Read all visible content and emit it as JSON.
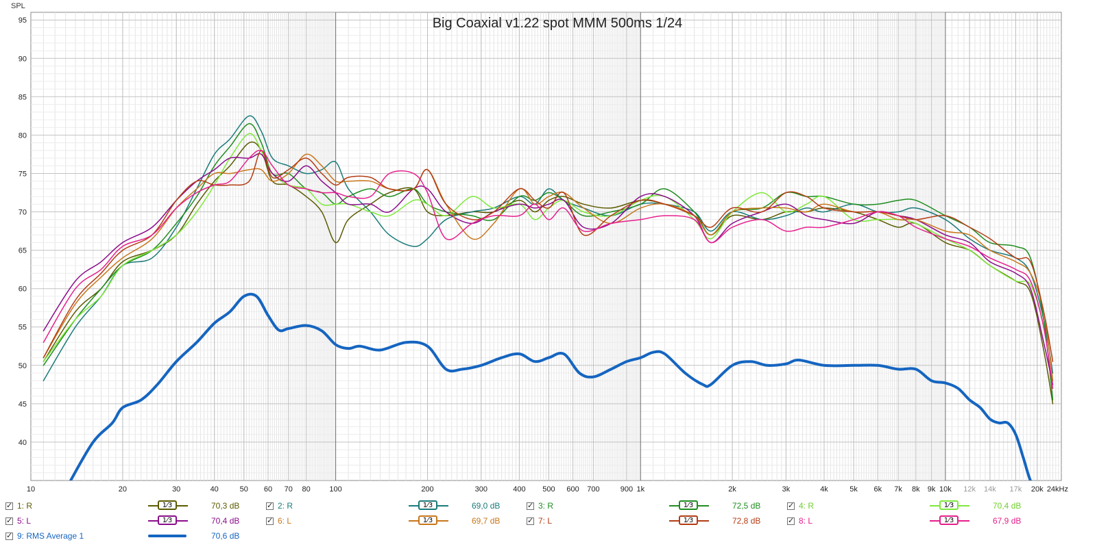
{
  "chart_data": {
    "type": "line",
    "title": "Big Coaxial v1.22 spot MMM 500ms 1/24",
    "ylabel": "SPL",
    "xscale": "log",
    "xlim": [
      10,
      24000
    ],
    "ylim": [
      35,
      96
    ],
    "grid": true,
    "x_ticks": [
      {
        "f": 10,
        "label": "10"
      },
      {
        "f": 20,
        "label": "20"
      },
      {
        "f": 30,
        "label": "30"
      },
      {
        "f": 40,
        "label": "40"
      },
      {
        "f": 50,
        "label": "50"
      },
      {
        "f": 60,
        "label": "60"
      },
      {
        "f": 70,
        "label": "70"
      },
      {
        "f": 80,
        "label": "80"
      },
      {
        "f": 100,
        "label": "100"
      },
      {
        "f": 200,
        "label": "200"
      },
      {
        "f": 300,
        "label": "300"
      },
      {
        "f": 400,
        "label": "400"
      },
      {
        "f": 500,
        "label": "500"
      },
      {
        "f": 600,
        "label": "600"
      },
      {
        "f": 700,
        "label": "700"
      },
      {
        "f": 900,
        "label": "900"
      },
      {
        "f": 1000,
        "label": "1k"
      },
      {
        "f": 2000,
        "label": "2k"
      },
      {
        "f": 3000,
        "label": "3k"
      },
      {
        "f": 4000,
        "label": "4k"
      },
      {
        "f": 5000,
        "label": "5k"
      },
      {
        "f": 6000,
        "label": "6k"
      },
      {
        "f": 7000,
        "label": "7k"
      },
      {
        "f": 8000,
        "label": "8k"
      },
      {
        "f": 9000,
        "label": "9k"
      },
      {
        "f": 10000,
        "label": "10k"
      },
      {
        "f": 12000,
        "label": "12k"
      },
      {
        "f": 14000,
        "label": "14k"
      },
      {
        "f": 17000,
        "label": "17k"
      },
      {
        "f": 20000,
        "label": "20k"
      },
      {
        "f": 24000,
        "label": "24kHz"
      }
    ],
    "y_ticks": [
      40,
      45,
      50,
      55,
      60,
      65,
      70,
      75,
      80,
      85,
      90,
      95
    ],
    "series": [
      {
        "name": "1: R",
        "color": "#5a5a00",
        "width": 1.5,
        "x": [
          11,
          14,
          17,
          20,
          25,
          30,
          35,
          40,
          45,
          52,
          57,
          62,
          70,
          80,
          90,
          100,
          110,
          130,
          150,
          180,
          200,
          230,
          280,
          330,
          400,
          450,
          500,
          560,
          650,
          800,
          1000,
          1200,
          1500,
          1700,
          2000,
          2500,
          3000,
          3500,
          4000,
          5000,
          6000,
          7000,
          8000,
          10000,
          12000,
          14000,
          17000,
          19000,
          21000,
          22500
        ],
        "y": [
          50.5,
          57,
          60,
          63.5,
          65,
          67,
          71,
          74,
          76,
          79,
          78,
          74,
          73.5,
          72,
          70,
          66,
          69,
          71,
          72.5,
          73,
          70,
          69.5,
          70,
          70,
          71.5,
          70,
          71.5,
          72,
          71,
          70.5,
          71.5,
          71,
          69.5,
          67,
          69.5,
          69,
          70,
          70,
          70.5,
          70,
          69,
          68,
          68.5,
          66,
          65,
          63,
          61,
          59.5,
          52,
          45
        ]
      },
      {
        "name": "2: R",
        "color": "#1a7a7a",
        "width": 1.5,
        "x": [
          11,
          14,
          17,
          20,
          25,
          30,
          35,
          40,
          45,
          52,
          57,
          62,
          70,
          80,
          90,
          100,
          110,
          130,
          150,
          180,
          200,
          230,
          280,
          330,
          400,
          450,
          500,
          560,
          650,
          800,
          1000,
          1200,
          1500,
          1700,
          2000,
          2500,
          3000,
          3500,
          4000,
          5000,
          6000,
          7000,
          8000,
          10000,
          12000,
          14000,
          17000,
          19000,
          21000,
          22500
        ],
        "y": [
          48,
          55,
          59,
          63,
          64,
          68,
          73,
          77.5,
          79.5,
          82.5,
          80.5,
          77,
          76,
          75,
          75.5,
          76.5,
          73,
          70,
          67,
          65.5,
          66.5,
          69,
          70,
          70.5,
          72,
          71,
          73,
          71.5,
          70.5,
          69.5,
          71,
          71,
          70,
          67.5,
          70,
          69,
          69.5,
          70.5,
          70,
          71,
          70,
          70,
          70.5,
          69,
          66.5,
          65,
          64,
          62,
          56,
          49
        ]
      },
      {
        "name": "3: R",
        "color": "#1e8c1e",
        "width": 1.5,
        "x": [
          11,
          14,
          17,
          20,
          25,
          30,
          35,
          40,
          45,
          52,
          57,
          62,
          70,
          80,
          90,
          100,
          110,
          130,
          150,
          180,
          200,
          230,
          280,
          330,
          400,
          450,
          500,
          560,
          650,
          800,
          1000,
          1200,
          1500,
          1700,
          2000,
          2500,
          3000,
          3500,
          4000,
          5000,
          6000,
          7000,
          8000,
          10000,
          12000,
          14000,
          17000,
          19000,
          21000,
          22500
        ],
        "y": [
          50,
          56,
          60,
          63,
          65,
          68.5,
          72,
          76,
          78.5,
          81.5,
          79,
          75,
          75,
          73,
          72.5,
          71,
          72,
          73,
          72,
          73,
          71,
          70,
          69.5,
          69,
          72,
          71.5,
          72.5,
          71.5,
          69.5,
          70,
          71,
          73,
          70,
          67,
          70,
          70.5,
          72.5,
          72,
          72,
          71,
          71,
          71.5,
          71.5,
          69.5,
          68,
          66,
          65.5,
          64,
          56,
          45.5
        ]
      },
      {
        "name": "4: R",
        "color": "#7ee83a",
        "width": 1.5,
        "x": [
          11,
          14,
          17,
          20,
          25,
          30,
          35,
          40,
          45,
          52,
          57,
          62,
          70,
          80,
          90,
          100,
          110,
          130,
          150,
          180,
          200,
          230,
          280,
          330,
          400,
          450,
          500,
          560,
          650,
          800,
          1000,
          1200,
          1500,
          1700,
          2000,
          2500,
          3000,
          3500,
          4000,
          5000,
          6000,
          7000,
          8000,
          10000,
          12000,
          14000,
          17000,
          19000,
          21000,
          22500
        ],
        "y": [
          50.5,
          56,
          59,
          63,
          65,
          67,
          70,
          73.5,
          77,
          80.2,
          78,
          75,
          73.5,
          73,
          71,
          71,
          71,
          70,
          69.5,
          71.5,
          71,
          69.5,
          72,
          70.5,
          71,
          69,
          70.5,
          71.5,
          70,
          69.5,
          71.5,
          72,
          69,
          66.5,
          70,
          72.5,
          70,
          71,
          72,
          69,
          69,
          69,
          68.5,
          66.5,
          65,
          63,
          61,
          60.5,
          55,
          47
        ]
      },
      {
        "name": "5: L",
        "color": "#8b0c8b",
        "width": 1.5,
        "x": [
          11,
          14,
          17,
          20,
          25,
          30,
          35,
          40,
          45,
          52,
          57,
          62,
          70,
          80,
          90,
          100,
          110,
          130,
          150,
          180,
          200,
          230,
          280,
          330,
          400,
          450,
          500,
          560,
          650,
          800,
          1000,
          1200,
          1500,
          1700,
          2000,
          2500,
          3000,
          3500,
          4000,
          5000,
          6000,
          7000,
          8000,
          10000,
          12000,
          14000,
          17000,
          19000,
          21000,
          22500
        ],
        "y": [
          54.5,
          61,
          63.5,
          66,
          68,
          71.5,
          74,
          75.5,
          77,
          77,
          77.5,
          75,
          74,
          76,
          74,
          72.5,
          71,
          71,
          70,
          73,
          73,
          70,
          68.5,
          70,
          71,
          70.5,
          71,
          71.5,
          68,
          68.5,
          72,
          72,
          69.5,
          66,
          68.5,
          70,
          71,
          69.5,
          69,
          68.5,
          70,
          69.5,
          69,
          67,
          66,
          63.5,
          62,
          60,
          53,
          47.5
        ]
      },
      {
        "name": "6: L",
        "color": "#c8761a",
        "width": 1.5,
        "x": [
          11,
          14,
          17,
          20,
          25,
          30,
          35,
          40,
          45,
          52,
          57,
          62,
          70,
          80,
          90,
          100,
          110,
          130,
          150,
          180,
          200,
          230,
          280,
          330,
          400,
          450,
          500,
          560,
          650,
          800,
          1000,
          1200,
          1500,
          1700,
          2000,
          2500,
          3000,
          3500,
          4000,
          5000,
          6000,
          7000,
          8000,
          10000,
          12000,
          14000,
          17000,
          19000,
          21000,
          22500
        ],
        "y": [
          51,
          58,
          61.5,
          64,
          66.5,
          70.5,
          73,
          75,
          75,
          75.5,
          75.5,
          74,
          75,
          77.5,
          76,
          74,
          74,
          74,
          73,
          73,
          75.5,
          71,
          66.5,
          68.5,
          73,
          71,
          72,
          72.5,
          70.5,
          68.5,
          70.5,
          71,
          69.5,
          67,
          70,
          70.5,
          70.5,
          70,
          71,
          70,
          70,
          69,
          69,
          67.5,
          67,
          65,
          63.5,
          62,
          57,
          48
        ]
      },
      {
        "name": "7: L",
        "color": "#b33c14",
        "width": 1.5,
        "x": [
          11,
          14,
          17,
          20,
          25,
          30,
          35,
          40,
          45,
          52,
          57,
          62,
          70,
          80,
          90,
          100,
          110,
          130,
          150,
          180,
          200,
          230,
          280,
          330,
          400,
          450,
          500,
          560,
          650,
          800,
          1000,
          1200,
          1500,
          1700,
          2000,
          2500,
          3000,
          3500,
          4000,
          5000,
          6000,
          7000,
          8000,
          10000,
          12000,
          14000,
          17000,
          19000,
          21000,
          22500
        ],
        "y": [
          51,
          58.5,
          62,
          65,
          67,
          71.5,
          74,
          73.5,
          73.5,
          74,
          78,
          74.5,
          75.5,
          77,
          75,
          73.5,
          74.5,
          74.5,
          73,
          73,
          75.5,
          71,
          69,
          70,
          73,
          71.5,
          70.5,
          72.5,
          67,
          69.5,
          71.5,
          71,
          69.5,
          68,
          70.5,
          70,
          72.5,
          72,
          70.5,
          70,
          70,
          69.5,
          69,
          69.5,
          68,
          66.5,
          64,
          63.5,
          57,
          50.5
        ]
      },
      {
        "name": "8: L",
        "color": "#e61e8c",
        "width": 1.5,
        "x": [
          11,
          14,
          17,
          20,
          25,
          30,
          35,
          40,
          45,
          52,
          57,
          62,
          70,
          80,
          90,
          100,
          110,
          130,
          150,
          180,
          200,
          230,
          280,
          330,
          400,
          450,
          500,
          560,
          650,
          800,
          1000,
          1200,
          1500,
          1700,
          2000,
          2500,
          3000,
          3500,
          4000,
          5000,
          6000,
          7000,
          8000,
          10000,
          12000,
          14000,
          17000,
          19000,
          21000,
          22500
        ],
        "y": [
          53,
          60,
          62.5,
          65.5,
          67,
          70.5,
          72.5,
          73.5,
          74,
          77,
          78,
          76,
          73.5,
          73,
          72.5,
          72.5,
          72,
          72,
          75,
          75,
          72.5,
          66.5,
          68.5,
          69.5,
          69.5,
          71,
          69,
          70.5,
          67.5,
          68.5,
          69,
          69.5,
          69,
          66,
          68,
          69,
          67.5,
          68,
          68,
          69,
          70,
          69.5,
          68,
          66.5,
          65.5,
          64,
          62.5,
          61,
          55,
          47
        ]
      },
      {
        "name": "9: RMS Average 1",
        "color": "#1565c0",
        "width": 4,
        "x": [
          13.5,
          16,
          18.5,
          20,
          23,
          26,
          30,
          35,
          40,
          45,
          50,
          55,
          60,
          65,
          70,
          80,
          90,
          100,
          110,
          120,
          140,
          170,
          200,
          230,
          260,
          300,
          350,
          400,
          450,
          500,
          560,
          630,
          700,
          800,
          900,
          1000,
          1100,
          1200,
          1400,
          1600,
          1700,
          2000,
          2300,
          2600,
          3000,
          3300,
          4000,
          5000,
          6000,
          7000,
          8000,
          9000,
          10000,
          11000,
          12000,
          13000,
          14000,
          15000,
          16000,
          17000,
          18000,
          19000,
          20000
        ],
        "y": [
          35,
          40,
          42.5,
          44.5,
          45.5,
          47.5,
          50.5,
          53,
          55.5,
          57,
          59,
          59,
          56.5,
          54.6,
          54.8,
          55.2,
          54.5,
          52.7,
          52.2,
          52.5,
          52,
          53,
          52.5,
          49.5,
          49.5,
          50,
          51,
          51.5,
          50.5,
          51,
          51.5,
          49,
          48.5,
          49.5,
          50.5,
          51,
          51.7,
          51.5,
          49,
          47.5,
          47.5,
          50,
          50.5,
          50,
          50.2,
          50.7,
          50,
          50,
          50,
          49.5,
          49.5,
          48,
          47.7,
          47,
          45.5,
          44.5,
          43,
          42.5,
          42.5,
          41,
          38,
          35,
          34
        ]
      }
    ]
  },
  "legend": {
    "smooth_label": "1⁄3",
    "items": [
      {
        "name": "1: R",
        "db": "70,3 dB",
        "color": "#5a5a00",
        "text_color": "#5a5a00"
      },
      {
        "name": "2: R",
        "db": "69,0 dB",
        "color": "#1a7a7a",
        "text_color": "#1a7a7a"
      },
      {
        "name": "3: R",
        "db": "72,5 dB",
        "color": "#1e8c1e",
        "text_color": "#1e8c1e"
      },
      {
        "name": "4: R",
        "db": "70,4 dB",
        "color": "#7ee83a",
        "text_color": "#6fd02e"
      },
      {
        "name": "5: L",
        "db": "70,4 dB",
        "color": "#8b0c8b",
        "text_color": "#8b0c8b"
      },
      {
        "name": "6: L",
        "db": "69,7 dB",
        "color": "#c8761a",
        "text_color": "#c8761a"
      },
      {
        "name": "7: L",
        "db": "72,8 dB",
        "color": "#b33c14",
        "text_color": "#b33c14"
      },
      {
        "name": "8: L",
        "db": "67,9 dB",
        "color": "#e61e8c",
        "text_color": "#e61e8c"
      },
      {
        "name": "9: RMS Average 1",
        "db": "70,6 dB",
        "color": "#1565c0",
        "text_color": "#1565c0"
      }
    ]
  }
}
